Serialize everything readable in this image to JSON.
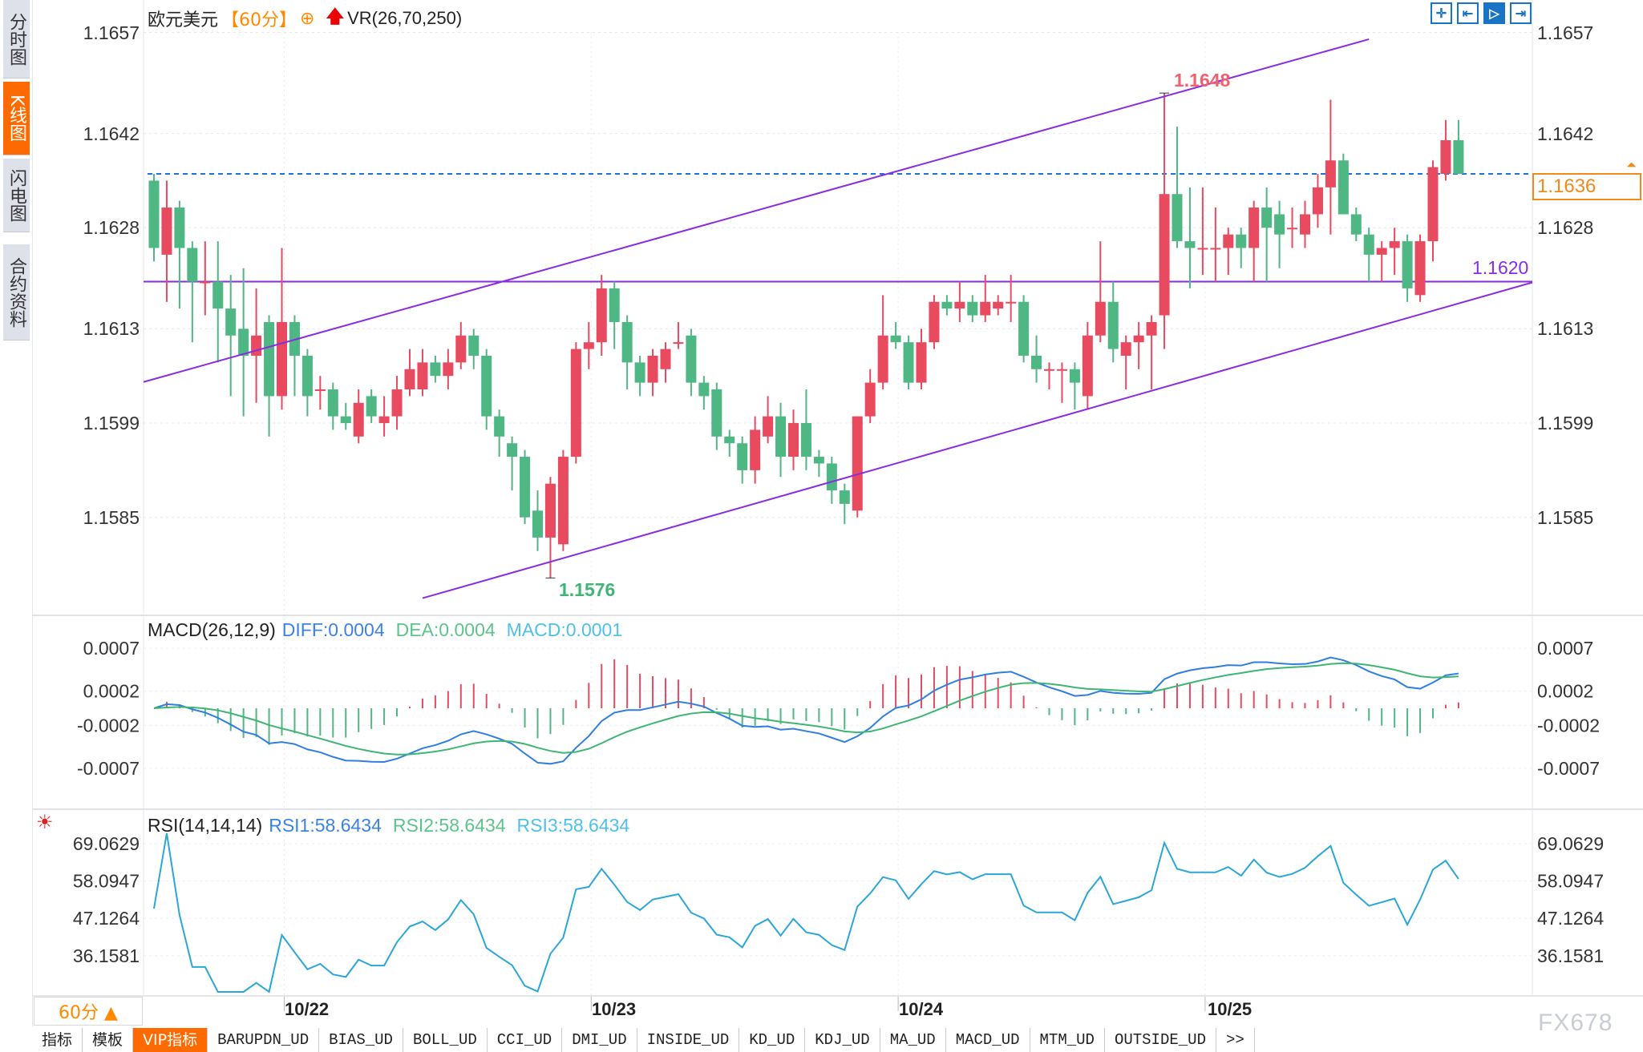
{
  "sidebar": {
    "items": [
      {
        "label": "分时图",
        "active": false
      },
      {
        "label": "K线图",
        "active": true
      },
      {
        "label": "闪电图",
        "active": false
      },
      {
        "label": "合约资料",
        "active": false
      }
    ]
  },
  "header": {
    "symbol": "欧元美元",
    "period": "【60分】",
    "period_icon": "⊕",
    "indicator": "VR(26,70,250)"
  },
  "toolbar_icons": [
    "crosshair-icon",
    "zoom-left-icon",
    "zoom-right-icon",
    "move-right-icon"
  ],
  "price_axis": {
    "labels": [
      "1.1657",
      "1.1642",
      "1.1628",
      "1.1613",
      "1.1599",
      "1.1585"
    ],
    "current_price": "1.1636",
    "current_color": "#f08a1c"
  },
  "annotations": {
    "high": "1.1648",
    "low": "1.1576",
    "support": "1.1620"
  },
  "macd": {
    "title": "MACD(26,12,9)",
    "diff": "DIFF:0.0004",
    "dea": "DEA:0.0004",
    "macd": "MACD:0.0001",
    "axis": [
      "0.0007",
      "0.0002",
      "-0.0002",
      "-0.0007"
    ]
  },
  "rsi": {
    "title": "RSI(14,14,14)",
    "rsi1": "RSI1:58.6434",
    "rsi2": "RSI2:58.6434",
    "rsi3": "RSI3:58.6434",
    "axis": [
      "69.0629",
      "58.0947",
      "47.1264",
      "36.1581"
    ]
  },
  "xaxis": {
    "dates": [
      "10/22",
      "10/23",
      "10/24",
      "10/25"
    ],
    "period_button": "60分 ▲"
  },
  "tabs": [
    "指标",
    "模板",
    "VIP指标",
    "BARUPDN_UD",
    "BIAS_UD",
    "BOLL_UD",
    "CCI_UD",
    "DMI_UD",
    "INSIDE_UD",
    "KD_UD",
    "KDJ_UD",
    "MA_UD",
    "MACD_UD",
    "MTM_UD",
    "OUTSIDE_UD",
    ">>"
  ],
  "watermark": "FX678",
  "colors": {
    "up": "#e84a5f",
    "down": "#4fb783",
    "trend": "#8a2be2",
    "diff": "#2f7ee0",
    "dea": "#3fb574",
    "rsi": "#2aa6d9"
  },
  "chart_data": {
    "type": "candlestick",
    "title": "欧元美元 60分",
    "ylim": [
      1.157,
      1.1665
    ],
    "date_ticks": [
      {
        "label": "10/22",
        "index": 10
      },
      {
        "label": "10/23",
        "index": 34
      },
      {
        "label": "10/24",
        "index": 58
      },
      {
        "label": "10/25",
        "index": 82
      }
    ],
    "candles": [
      [
        1.1635,
        1.1636,
        1.1623,
        1.1625
      ],
      [
        1.1624,
        1.1635,
        1.1617,
        1.1631
      ],
      [
        1.1631,
        1.1632,
        1.1616,
        1.1625
      ],
      [
        1.1625,
        1.1626,
        1.1611,
        1.162
      ],
      [
        1.162,
        1.1626,
        1.1615,
        1.162
      ],
      [
        1.162,
        1.1626,
        1.1608,
        1.1616
      ],
      [
        1.1616,
        1.1621,
        1.1603,
        1.1612
      ],
      [
        1.1613,
        1.1622,
        1.16,
        1.1609
      ],
      [
        1.1609,
        1.1619,
        1.1602,
        1.1612
      ],
      [
        1.1614,
        1.1615,
        1.1597,
        1.1603
      ],
      [
        1.1603,
        1.1625,
        1.1601,
        1.1614
      ],
      [
        1.1614,
        1.1615,
        1.1603,
        1.1609
      ],
      [
        1.1609,
        1.161,
        1.16,
        1.1603
      ],
      [
        1.1604,
        1.1606,
        1.1601,
        1.1604
      ],
      [
        1.1604,
        1.1605,
        1.1598,
        1.16
      ],
      [
        1.16,
        1.1602,
        1.1598,
        1.1599
      ],
      [
        1.1597,
        1.1604,
        1.1596,
        1.1602
      ],
      [
        1.1603,
        1.1604,
        1.1599,
        1.16
      ],
      [
        1.1599,
        1.1603,
        1.1597,
        1.16
      ],
      [
        1.16,
        1.1606,
        1.1598,
        1.1604
      ],
      [
        1.1604,
        1.161,
        1.1603,
        1.1607
      ],
      [
        1.1604,
        1.161,
        1.1603,
        1.1608
      ],
      [
        1.1608,
        1.1609,
        1.1605,
        1.1606
      ],
      [
        1.1606,
        1.161,
        1.1604,
        1.1608
      ],
      [
        1.1608,
        1.1614,
        1.1607,
        1.1612
      ],
      [
        1.1612,
        1.1613,
        1.1607,
        1.1609
      ],
      [
        1.1609,
        1.161,
        1.1598,
        1.16
      ],
      [
        1.16,
        1.1601,
        1.1594,
        1.1597
      ],
      [
        1.1596,
        1.1597,
        1.1589,
        1.1594
      ],
      [
        1.1594,
        1.1595,
        1.1584,
        1.1585
      ],
      [
        1.1586,
        1.1589,
        1.158,
        1.1582
      ],
      [
        1.1582,
        1.1591,
        1.1576,
        1.159
      ],
      [
        1.1581,
        1.1595,
        1.158,
        1.1594
      ],
      [
        1.1594,
        1.1611,
        1.1593,
        1.161
      ],
      [
        1.161,
        1.1614,
        1.1607,
        1.1611
      ],
      [
        1.1611,
        1.1621,
        1.1609,
        1.1619
      ],
      [
        1.1619,
        1.162,
        1.161,
        1.1614
      ],
      [
        1.1614,
        1.1615,
        1.1604,
        1.1608
      ],
      [
        1.1608,
        1.1609,
        1.1603,
        1.1605
      ],
      [
        1.1605,
        1.161,
        1.1603,
        1.1609
      ],
      [
        1.1607,
        1.1611,
        1.1605,
        1.161
      ],
      [
        1.1611,
        1.1614,
        1.161,
        1.1611
      ],
      [
        1.1612,
        1.1613,
        1.1603,
        1.1605
      ],
      [
        1.1605,
        1.1606,
        1.1601,
        1.1603
      ],
      [
        1.1604,
        1.1605,
        1.1595,
        1.1597
      ],
      [
        1.1597,
        1.1598,
        1.1594,
        1.1596
      ],
      [
        1.1596,
        1.1597,
        1.159,
        1.1592
      ],
      [
        1.1592,
        1.16,
        1.159,
        1.1598
      ],
      [
        1.1597,
        1.1603,
        1.1596,
        1.16
      ],
      [
        1.16,
        1.1602,
        1.1591,
        1.1594
      ],
      [
        1.1594,
        1.1601,
        1.1592,
        1.1599
      ],
      [
        1.1599,
        1.1604,
        1.1592,
        1.1594
      ],
      [
        1.1594,
        1.1595,
        1.1591,
        1.1593
      ],
      [
        1.1593,
        1.1594,
        1.1587,
        1.1589
      ],
      [
        1.1589,
        1.159,
        1.1584,
        1.1587
      ],
      [
        1.1586,
        1.16,
        1.1585,
        1.16
      ],
      [
        1.16,
        1.1607,
        1.1599,
        1.1605
      ],
      [
        1.1605,
        1.1618,
        1.1604,
        1.1612
      ],
      [
        1.1612,
        1.1614,
        1.161,
        1.1611
      ],
      [
        1.1611,
        1.1612,
        1.1604,
        1.1605
      ],
      [
        1.1605,
        1.1613,
        1.1604,
        1.1611
      ],
      [
        1.1611,
        1.1618,
        1.161,
        1.1617
      ],
      [
        1.1617,
        1.1618,
        1.1615,
        1.1616
      ],
      [
        1.1616,
        1.162,
        1.1614,
        1.1617
      ],
      [
        1.1617,
        1.1618,
        1.1614,
        1.1615
      ],
      [
        1.1615,
        1.1621,
        1.1614,
        1.1617
      ],
      [
        1.1616,
        1.1618,
        1.1615,
        1.1617
      ],
      [
        1.1617,
        1.1621,
        1.1614,
        1.1617
      ],
      [
        1.1617,
        1.1618,
        1.1608,
        1.1609
      ],
      [
        1.1609,
        1.1612,
        1.1605,
        1.1607
      ],
      [
        1.1607,
        1.1608,
        1.1604,
        1.1607
      ],
      [
        1.1607,
        1.1608,
        1.1602,
        1.1607
      ],
      [
        1.1607,
        1.1608,
        1.1601,
        1.1605
      ],
      [
        1.1603,
        1.1614,
        1.1601,
        1.1612
      ],
      [
        1.1612,
        1.1626,
        1.1611,
        1.1617
      ],
      [
        1.1617,
        1.162,
        1.1608,
        1.161
      ],
      [
        1.1609,
        1.1612,
        1.1604,
        1.1611
      ],
      [
        1.1611,
        1.1614,
        1.1607,
        1.1612
      ],
      [
        1.1612,
        1.1615,
        1.1604,
        1.1614
      ],
      [
        1.1615,
        1.1648,
        1.161,
        1.1633
      ],
      [
        1.1633,
        1.1643,
        1.1625,
        1.1626
      ],
      [
        1.1626,
        1.1634,
        1.1619,
        1.1625
      ],
      [
        1.1625,
        1.1634,
        1.1621,
        1.1625
      ],
      [
        1.1625,
        1.1631,
        1.162,
        1.1625
      ],
      [
        1.1625,
        1.1628,
        1.1621,
        1.1627
      ],
      [
        1.1627,
        1.1628,
        1.1622,
        1.1625
      ],
      [
        1.1625,
        1.1632,
        1.162,
        1.1631
      ],
      [
        1.1631,
        1.1634,
        1.162,
        1.1628
      ],
      [
        1.163,
        1.1632,
        1.1622,
        1.1627
      ],
      [
        1.1628,
        1.1631,
        1.1625,
        1.1628
      ],
      [
        1.1627,
        1.1632,
        1.1625,
        1.163
      ],
      [
        1.163,
        1.1636,
        1.1628,
        1.1634
      ],
      [
        1.1634,
        1.1647,
        1.1627,
        1.1638
      ],
      [
        1.1638,
        1.1639,
        1.163,
        1.163
      ],
      [
        1.163,
        1.1631,
        1.1626,
        1.1627
      ],
      [
        1.1627,
        1.1628,
        1.162,
        1.1624
      ],
      [
        1.1624,
        1.1626,
        1.162,
        1.1625
      ],
      [
        1.1625,
        1.1628,
        1.1621,
        1.1626
      ],
      [
        1.1626,
        1.1627,
        1.1617,
        1.1619
      ],
      [
        1.1618,
        1.1627,
        1.1617,
        1.1626
      ],
      [
        1.1626,
        1.1638,
        1.1623,
        1.1637
      ],
      [
        1.1636,
        1.1644,
        1.1635,
        1.1641
      ],
      [
        1.1641,
        1.1644,
        1.1636,
        1.1636
      ]
    ],
    "channel_upper": [
      {
        "index": -1,
        "price": 1.1605
      },
      {
        "index": 95,
        "price": 1.1656
      }
    ],
    "channel_lower": [
      {
        "index": 21,
        "price": 1.1573
      },
      {
        "index": 108,
        "price": 1.162
      }
    ],
    "support_level": 1.162,
    "current_level": 1.1636,
    "macd_ylim": [
      -0.001,
      0.0009
    ],
    "rsi_ylim": [
      27,
      73
    ]
  }
}
